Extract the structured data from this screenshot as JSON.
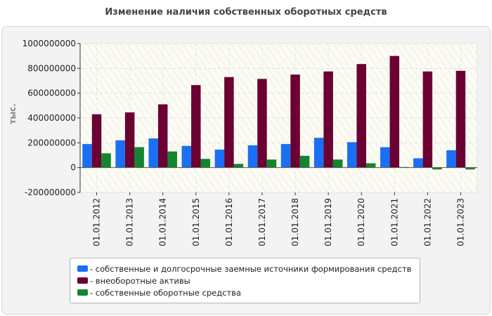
{
  "chart_data": {
    "type": "bar",
    "title": "Изменение наличия собственных оборотных средств",
    "ylabel": "тыс.",
    "xlabel": "",
    "ylim": [
      -200000000,
      1000000000
    ],
    "yticks": [
      1000000000,
      800000000,
      600000000,
      400000000,
      200000000,
      0,
      -200000000
    ],
    "ytick_labels": [
      "1000000000",
      "800000000",
      "600000000",
      "400000000",
      "200000000",
      "0",
      "-200000000"
    ],
    "grid": true,
    "categories": [
      "01.01.2012",
      "01.01.2013",
      "01.01.2014",
      "01.01.2015",
      "01.01.2016",
      "01.01.2017",
      "01.01.2018",
      "01.01.2019",
      "01.01.2020",
      "01.01.2021",
      "01.01.2022",
      "01.01.2023"
    ],
    "series": [
      {
        "name": "собственные и долгосрочные заемные источники формирования средств",
        "color": "#1a6ff5",
        "values": [
          190000000,
          220000000,
          235000000,
          175000000,
          145000000,
          180000000,
          190000000,
          240000000,
          205000000,
          165000000,
          75000000,
          140000000
        ]
      },
      {
        "name": "внеоборотные активы",
        "color": "#6b0033",
        "values": [
          430000000,
          445000000,
          510000000,
          665000000,
          730000000,
          715000000,
          750000000,
          775000000,
          835000000,
          900000000,
          775000000,
          780000000
        ]
      },
      {
        "name": "собственные оборотные средства",
        "color": "#12852f",
        "values": [
          115000000,
          165000000,
          130000000,
          70000000,
          30000000,
          65000000,
          95000000,
          65000000,
          35000000,
          5000000,
          -15000000,
          -15000000
        ]
      }
    ],
    "legend_position": "bottom"
  }
}
